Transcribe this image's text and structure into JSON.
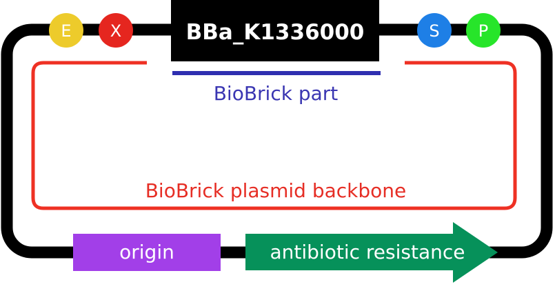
{
  "part": {
    "name": "BBa_K1336000",
    "caption": "BioBrick part"
  },
  "backbone": {
    "caption": "BioBrick plasmid backbone"
  },
  "sites": [
    {
      "letter": "E",
      "color": "#EDCB2B"
    },
    {
      "letter": "X",
      "color": "#E5261F"
    },
    {
      "letter": "S",
      "color": "#1E7FE6"
    },
    {
      "letter": "P",
      "color": "#27E52A"
    }
  ],
  "features": {
    "origin": {
      "label": "origin",
      "color": "#A23FE8"
    },
    "resistance": {
      "label": "antibiotic resistance",
      "color": "#06915A"
    }
  },
  "colors": {
    "loop": "#000000",
    "part_underline": "#2F2FB0",
    "part_caption": "#3A36B2",
    "backbone_outline": "#EE3124",
    "backbone_caption": "#E62E25"
  }
}
